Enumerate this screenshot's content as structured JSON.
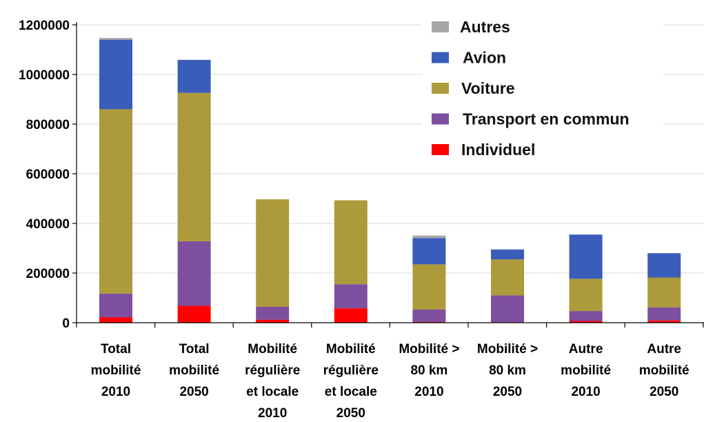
{
  "chart_data": {
    "type": "bar",
    "stacked": true,
    "categories": [
      [
        "Total",
        "mobilité",
        "2010"
      ],
      [
        "Total",
        "mobilité",
        "2050"
      ],
      [
        "Mobilité",
        "régulière",
        "et locale",
        "2010"
      ],
      [
        "Mobilité",
        "régulière",
        "et locale",
        "2050"
      ],
      [
        "Mobilité >",
        "80 km",
        "2010"
      ],
      [
        "Mobilité >",
        "80 km",
        "2050"
      ],
      [
        "Autre",
        "mobilité",
        "2010"
      ],
      [
        "Autre",
        "mobilité",
        "2050"
      ]
    ],
    "series": [
      {
        "name": "Individuel",
        "color": "#ff0000",
        "values": [
          22000,
          68000,
          12000,
          58000,
          3000,
          2000,
          7000,
          9000
        ]
      },
      {
        "name": "Transport en commun",
        "color": "#7f4f9f",
        "values": [
          95000,
          260000,
          52000,
          97000,
          50000,
          108000,
          40000,
          53000
        ]
      },
      {
        "name": "Voiture",
        "color": "#ad9a3a",
        "values": [
          743000,
          598000,
          433000,
          338000,
          182000,
          145000,
          130000,
          120000
        ]
      },
      {
        "name": "Avion",
        "color": "#3a5dba",
        "values": [
          280000,
          133000,
          0,
          0,
          106000,
          40000,
          178000,
          98000
        ]
      },
      {
        "name": "Autres",
        "color": "#a6a6a6",
        "values": [
          7000,
          0,
          0,
          0,
          10000,
          0,
          0,
          0
        ]
      }
    ],
    "ylim": [
      0,
      1200000
    ],
    "yticks": [
      "0",
      "200000",
      "400000",
      "600000",
      "800000",
      "1000000",
      "1200000"
    ],
    "legend": {
      "position": "top-right",
      "order": [
        "Autres",
        "Avion",
        "Voiture",
        "Transport en commun",
        "Individuel"
      ]
    },
    "grid": true,
    "title": "",
    "xlabel": "",
    "ylabel": ""
  }
}
